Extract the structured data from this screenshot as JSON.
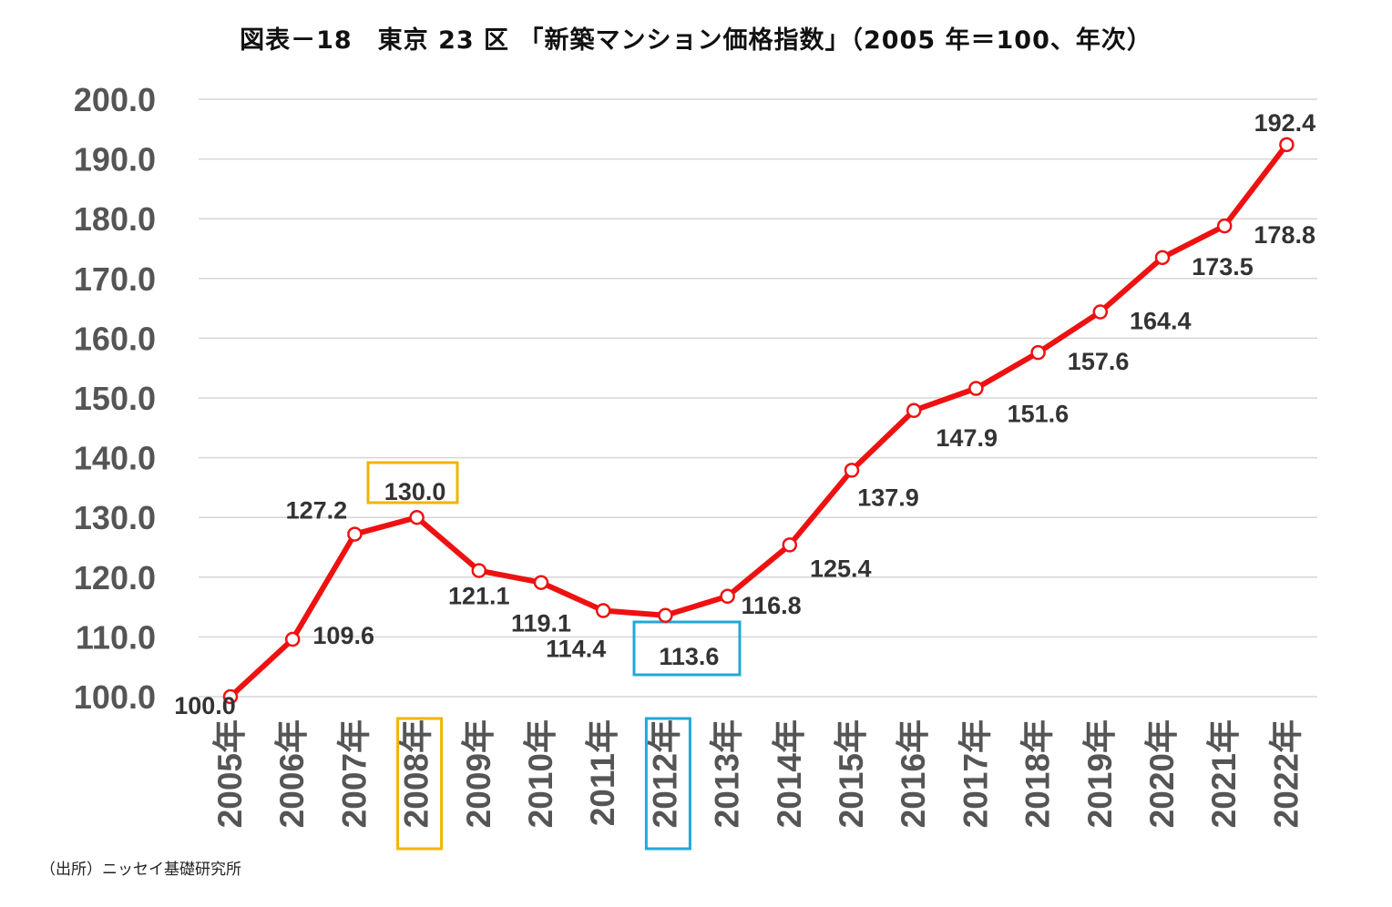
{
  "title": "図表－18　東京 23 区 「新築マンション価格指数」（2005 年＝100、年次）",
  "source": "（出所）ニッセイ基礎研究所",
  "chart_data": {
    "type": "line",
    "title": "図表－18　東京 23 区 「新築マンション価格指数」（2005 年＝100、年次）",
    "xlabel": "",
    "ylabel": "",
    "ylim": [
      100,
      200
    ],
    "y_ticks": [
      "100.0",
      "110.0",
      "120.0",
      "130.0",
      "140.0",
      "150.0",
      "160.0",
      "170.0",
      "180.0",
      "190.0",
      "200.0"
    ],
    "grid": true,
    "legend": "none",
    "categories": [
      "2005年",
      "2006年",
      "2007年",
      "2008年",
      "2009年",
      "2010年",
      "2011年",
      "2012年",
      "2013年",
      "2014年",
      "2015年",
      "2016年",
      "2017年",
      "2018年",
      "2019年",
      "2020年",
      "2021年",
      "2022年"
    ],
    "series": [
      {
        "values": [
          100.0,
          109.6,
          127.2,
          130.0,
          121.1,
          119.1,
          114.4,
          113.6,
          116.8,
          125.4,
          137.9,
          147.9,
          151.6,
          157.6,
          164.4,
          173.5,
          178.8,
          192.4
        ],
        "data_labels": [
          "100.0",
          "109.6",
          "127.2",
          "130.0",
          "121.1",
          "119.1",
          "114.4",
          "113.6",
          "116.8",
          "125.4",
          "137.9",
          "147.9",
          "151.6",
          "157.6",
          "164.4",
          "173.5",
          "178.8",
          "192.4"
        ],
        "color": "#ee1111"
      }
    ],
    "highlights": [
      {
        "category_index": 3,
        "color": "#f0b400"
      },
      {
        "category_index": 7,
        "color": "#22a8d8"
      }
    ],
    "colors": {
      "line": "#ee1111",
      "marker_fill": "#ffffff",
      "grid": "#d6d6d6",
      "axis_text": "#555555",
      "label_text": "#333333"
    }
  }
}
